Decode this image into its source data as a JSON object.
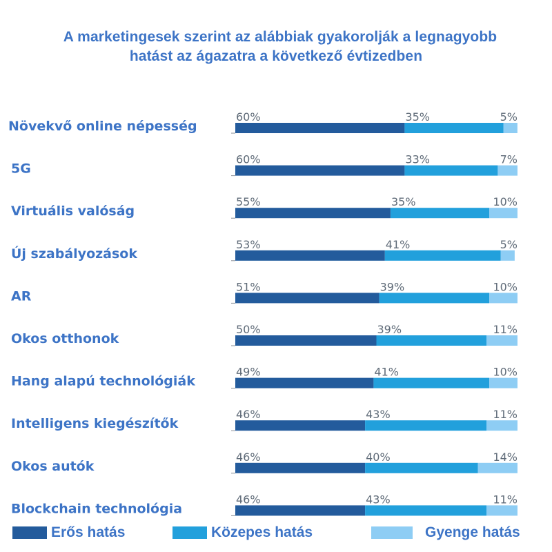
{
  "chart_data": {
    "type": "bar",
    "orientation": "horizontal",
    "stacked": true,
    "title": "A marketingesek szerint az alábbiak gyakorolják a legnagyobb hatást az ágazatra a következő évtizedben",
    "title_lines": [
      "A marketingesek szerint az alábbiak gyakorolják a legnagyobb",
      "hatást az ágazatra a következő évtizedben"
    ],
    "xlabel": "",
    "ylabel": "",
    "xlim": [
      0,
      100
    ],
    "unit": "%",
    "grid": false,
    "legend_position": "bottom",
    "categories": [
      "Növekvő online népesség",
      "5G",
      "Virtuális valóság",
      "Új szabályozások",
      "AR",
      "Okos otthonok",
      "Hang alapú technológiák",
      "Intelligens kiegészítők",
      "Okos autók",
      "Blockchain technológia"
    ],
    "series": [
      {
        "name": "Erős hatás",
        "color": "#235b9c",
        "values": [
          60,
          60,
          55,
          53,
          51,
          50,
          49,
          46,
          46,
          46
        ]
      },
      {
        "name": "Közepes hatás",
        "color": "#22a0dc",
        "values": [
          35,
          33,
          35,
          41,
          39,
          39,
          41,
          43,
          40,
          43
        ]
      },
      {
        "name": "Gyenge hatás",
        "color": "#8ecdf4",
        "values": [
          5,
          7,
          10,
          5,
          10,
          11,
          10,
          11,
          14,
          11
        ]
      }
    ]
  },
  "colors": {
    "title": "#3d74c6",
    "category_label": "#3d74c6",
    "value_label": "#5f6b78"
  }
}
